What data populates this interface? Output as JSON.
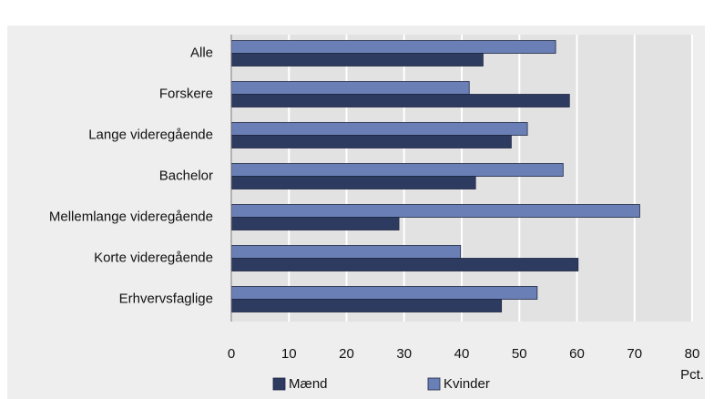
{
  "chart_data": {
    "type": "bar",
    "orientation": "horizontal",
    "categories": [
      "Alle",
      "Forskere",
      "Lange videregående",
      "Bachelor",
      "Mellemlange videregående",
      "Korte videregående",
      "Erhvervsfaglige"
    ],
    "series": [
      {
        "name": "Mænd",
        "color": "#2e3b61",
        "values": [
          43.7,
          58.7,
          48.6,
          42.4,
          29.1,
          60.2,
          46.9
        ]
      },
      {
        "name": "Kvinder",
        "color": "#6a7fb5",
        "values": [
          56.3,
          41.3,
          51.4,
          57.6,
          70.9,
          39.8,
          53.1
        ]
      }
    ],
    "xlim": [
      0,
      80
    ],
    "xticks": [
      0,
      10,
      20,
      30,
      40,
      50,
      60,
      70,
      80
    ],
    "xlabel": "Pct.",
    "grid": true,
    "legend": "bottom"
  }
}
